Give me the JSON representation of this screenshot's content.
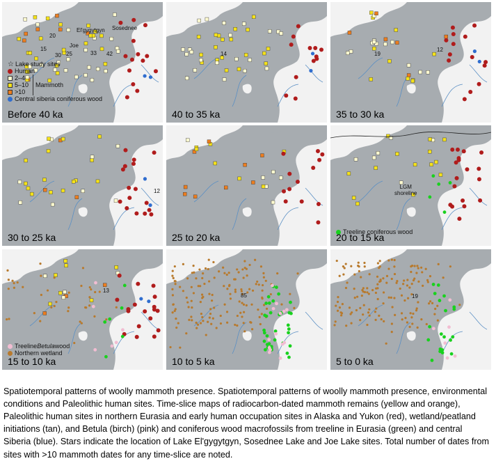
{
  "panels": [
    {
      "label": "Before 40 ka",
      "counts": [
        "15",
        "30",
        "25",
        "33",
        "42"
      ]
    },
    {
      "label": "40 to 35 ka",
      "counts": [
        "14"
      ]
    },
    {
      "label": "35 to 30 ka",
      "counts": [
        "19",
        "12"
      ]
    },
    {
      "label": "30 to 25 ka",
      "counts": [
        "12"
      ]
    },
    {
      "label": "25 to 20 ka",
      "counts": []
    },
    {
      "label": "20 to 15 ka",
      "counts": []
    },
    {
      "label": "15 to 10 ka",
      "counts": [
        "13"
      ]
    },
    {
      "label": "10 to 5 ka",
      "counts": [
        "85"
      ]
    },
    {
      "label": "5 to 0 ka",
      "counts": [
        "19"
      ]
    }
  ],
  "site_labels": {
    "elgygytgyn": "El'gygytgyn",
    "sosednee": "Sosednee",
    "joe": "Joe",
    "count_20": "20"
  },
  "legend_main": {
    "lake": "Lake study sites",
    "human": "Human",
    "bin_2_4": "2–4",
    "bin_5_10": "5–10",
    "bin_10": ">10",
    "mammoth": "Mammoth",
    "siberia_wood": "Central siberia coniferous wood"
  },
  "legend_treeline": "Treeline coniferous wood",
  "legend_betula_prefix": "Treeline ",
  "legend_betula_italic": "Betula",
  "legend_betula_suffix": " wood",
  "legend_wetland": "Northern wetland",
  "lgm_line1": "LGM",
  "lgm_line2": "shoreline",
  "caption": "Spatiotemporal patterns of woolly mammoth presence. Spatiotemporal patterns of woolly mammoth presence, environmental conditions and Paleolithic human sites. Time-slice maps of radiocarbon-dated mammoth remains (yellow and orange), Paleolithic human sites in northern Eurasia and early human occupation sites in Alaska and Yukon (red), wetland/peatland initiations (tan), and Betula (birch) (pink) and coniferous wood macrofossils from treeline in Eurasia (green) and central Siberia (blue). Stars indicate the location of Lake El'gygytgyn, Sosednee Lake and Joe Lake sites. Total number of dates from sites with >10 mammoth dates for any time-slice are noted.",
  "colors": {
    "land": "#a7acb0",
    "water": "#f2f2f2",
    "river": "#5a8fc4",
    "human": "#b01c1c",
    "mammoth_yellow": "#f5e21a",
    "mammoth_orange": "#ec7d1f",
    "wood_blue": "#2f6dcf",
    "wood_green": "#19d11e",
    "betula_pink": "#f2bdd2",
    "wetland_tan": "#b87a2d"
  }
}
